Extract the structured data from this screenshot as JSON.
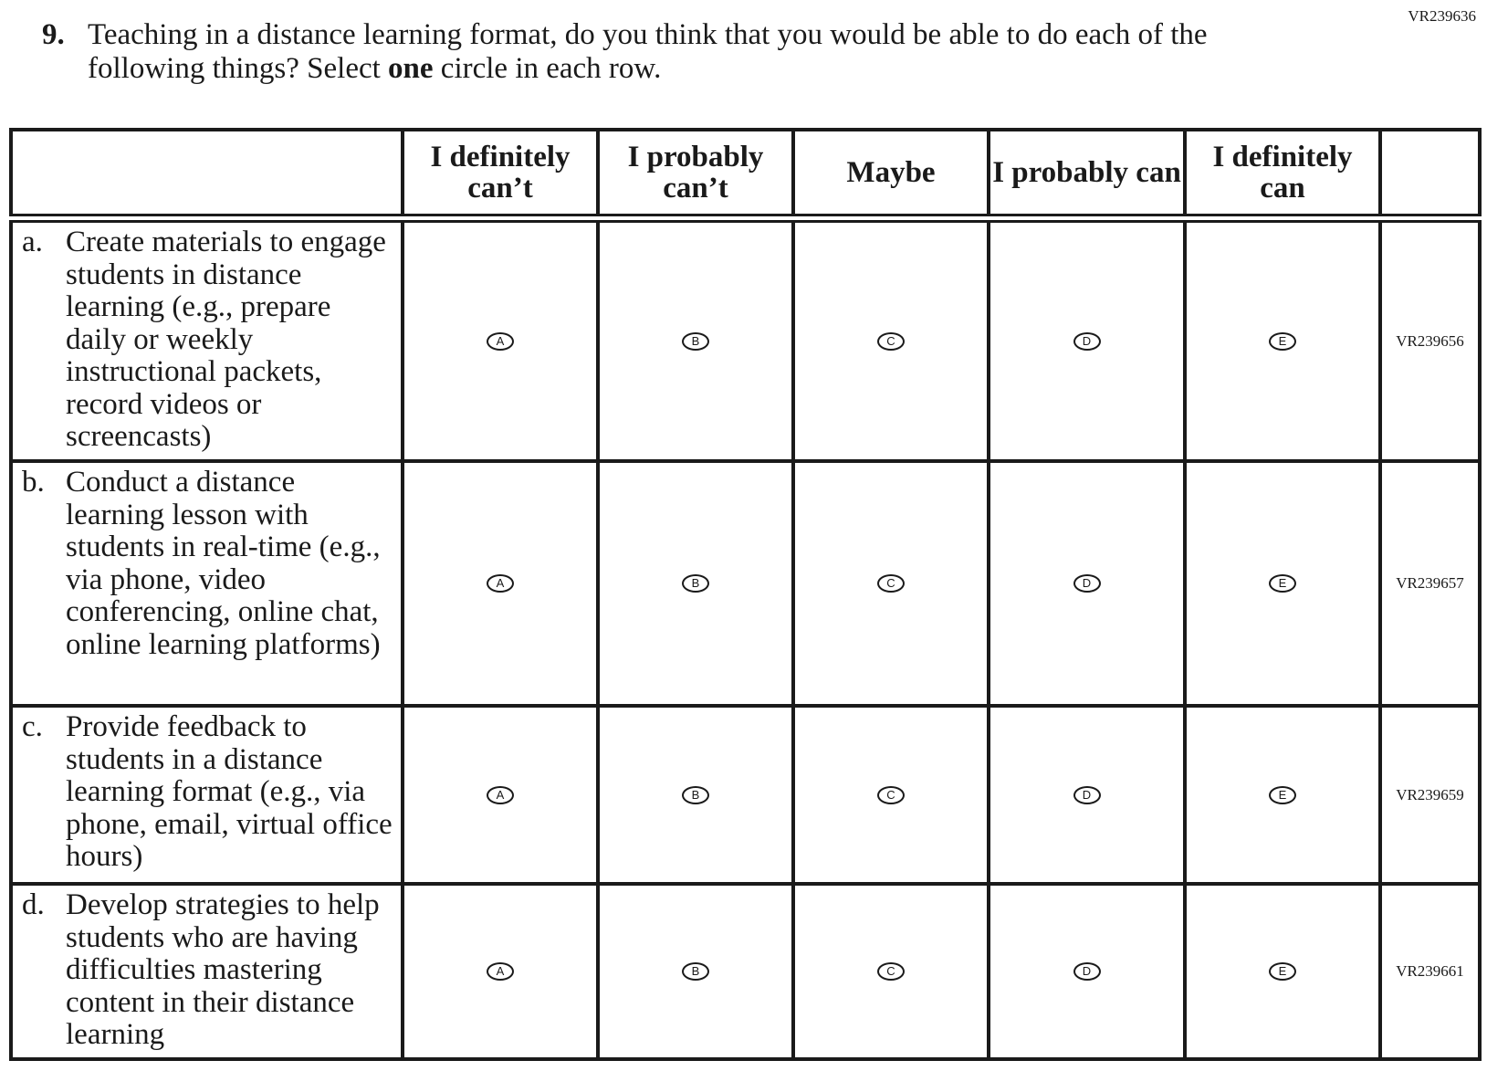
{
  "page_code": "VR239636",
  "question": {
    "number": "9.",
    "text_before": "Teaching in a distance learning format, do you think that you would be able to do each of the following things? Select ",
    "text_bold": "one",
    "text_after": " circle in each row."
  },
  "columns": [
    "I definitely can’t",
    "I probably can’t",
    "Maybe",
    "I probably can",
    "I definitely can"
  ],
  "options": [
    "A",
    "B",
    "C",
    "D",
    "E"
  ],
  "rows": [
    {
      "letter": "a.",
      "text": "Create materials to engage students in distance learning (e.g., prepare daily or weekly instructional packets, record videos or screencasts)",
      "code": "VR239656"
    },
    {
      "letter": "b.",
      "text": "Conduct a distance learning lesson with students in real-time (e.g., via phone, video conferencing, online chat, online learning platforms)",
      "code": "VR239657"
    },
    {
      "letter": "c.",
      "text": "Provide feedback to students in a distance learning format (e.g., via phone, email, virtual office hours)",
      "code": "VR239659"
    },
    {
      "letter": "d.",
      "text": "Develop strategies to help students who are having difficulties mastering content in their distance learning",
      "code": "VR239661"
    }
  ]
}
